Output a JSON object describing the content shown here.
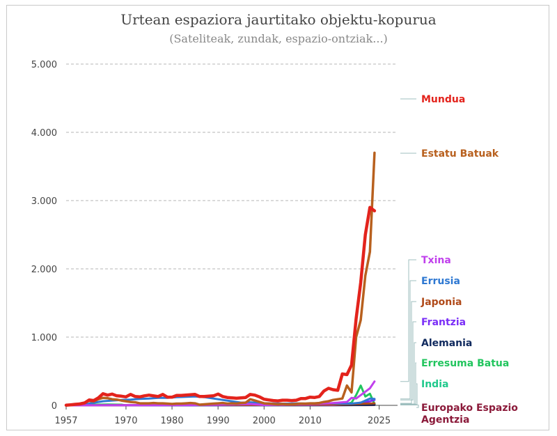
{
  "chart_data": {
    "type": "line",
    "title": "Urtean espaziora jaurtitako objektu-kopurua",
    "subtitle": "(Sateliteak, zundak, espazio-ontziak...)",
    "xlabel": "",
    "ylabel": "",
    "xlim": [
      1957,
      2029
    ],
    "ylim": [
      0,
      5000
    ],
    "x_ticks": [
      1957,
      1970,
      1980,
      1990,
      2000,
      2010,
      2025
    ],
    "y_ticks": [
      {
        "value": 0,
        "label": "0"
      },
      {
        "value": 1000,
        "label": "1.000"
      },
      {
        "value": 2000,
        "label": "2.000"
      },
      {
        "value": 3000,
        "label": "3.000"
      },
      {
        "value": 4000,
        "label": "4.000"
      },
      {
        "value": 5000,
        "label": "5.000"
      }
    ],
    "grid": true,
    "legend": "right, end-of-line labels",
    "series": [
      {
        "name": "Europako Espazio Agentzia",
        "color": "#8b1a3a",
        "x": [
          1975,
          1990,
          2010,
          2022,
          2024
        ],
        "y": [
          0,
          2,
          3,
          4,
          5
        ]
      },
      {
        "name": "India",
        "color": "#1fc98c",
        "x": [
          1975,
          1990,
          2010,
          2015,
          2020,
          2022,
          2024
        ],
        "y": [
          0,
          2,
          3,
          5,
          8,
          10,
          12
        ]
      },
      {
        "name": "Erresuma Batua",
        "color": "#22c55e",
        "x": [
          1957,
          1961,
          1962,
          1963,
          1966,
          1969,
          1970,
          1990,
          2015,
          2017,
          2018,
          2019,
          2020,
          2021,
          2022,
          2023,
          2024
        ],
        "y": [
          0,
          0,
          5,
          10,
          12,
          10,
          0,
          2,
          5,
          10,
          20,
          40,
          150,
          290,
          130,
          170,
          20
        ]
      },
      {
        "name": "Alemania",
        "color": "#102a5e",
        "x": [
          1957,
          1990,
          2015,
          2020,
          2023,
          2024
        ],
        "y": [
          0,
          2,
          3,
          5,
          8,
          10
        ]
      },
      {
        "name": "Frantzia",
        "color": "#7b2ff7",
        "x": [
          1957,
          1990,
          2015,
          2020,
          2023,
          2024
        ],
        "y": [
          0,
          3,
          5,
          30,
          60,
          80
        ]
      },
      {
        "name": "Japonia",
        "color": "#b04a1a",
        "x": [
          1957,
          1970,
          1980,
          1990,
          2000,
          2010,
          2015,
          2020,
          2024
        ],
        "y": [
          0,
          3,
          6,
          8,
          5,
          10,
          10,
          20,
          30
        ]
      },
      {
        "name": "Errusia",
        "color": "#2e78d2",
        "x": [
          1957,
          1961,
          1963,
          1965,
          1967,
          1969,
          1971,
          1973,
          1975,
          1977,
          1979,
          1981,
          1983,
          1985,
          1987,
          1989,
          1991,
          1993,
          1995,
          1997,
          1999,
          2001,
          2003,
          2005,
          2007,
          2009,
          2011,
          2013,
          2015,
          2017,
          2019,
          2021,
          2023,
          2024
        ],
        "y": [
          2,
          10,
          40,
          60,
          70,
          80,
          85,
          95,
          100,
          110,
          110,
          120,
          125,
          130,
          120,
          100,
          80,
          60,
          40,
          45,
          35,
          30,
          25,
          25,
          30,
          25,
          30,
          35,
          30,
          25,
          25,
          40,
          100,
          95
        ]
      },
      {
        "name": "Txina",
        "color": "#c040ec",
        "x": [
          1957,
          1970,
          1985,
          1997,
          2000,
          2010,
          2014,
          2016,
          2018,
          2019,
          2020,
          2021,
          2022,
          2023,
          2024
        ],
        "y": [
          0,
          2,
          5,
          20,
          5,
          20,
          30,
          40,
          50,
          110,
          100,
          150,
          200,
          250,
          350
        ]
      },
      {
        "name": "Estatu Batuak",
        "color": "#b8601e",
        "x": [
          1957,
          1958,
          1959,
          1960,
          1961,
          1962,
          1963,
          1964,
          1965,
          1966,
          1967,
          1968,
          1969,
          1970,
          1971,
          1972,
          1973,
          1974,
          1975,
          1976,
          1977,
          1978,
          1979,
          1980,
          1981,
          1982,
          1983,
          1984,
          1985,
          1986,
          1987,
          1988,
          1989,
          1990,
          1991,
          1992,
          1993,
          1994,
          1995,
          1996,
          1997,
          1998,
          1999,
          2000,
          2001,
          2002,
          2003,
          2004,
          2005,
          2006,
          2007,
          2008,
          2009,
          2010,
          2011,
          2012,
          2013,
          2014,
          2015,
          2016,
          2017,
          2018,
          2019,
          2020,
          2021,
          2022,
          2023,
          2024
        ],
        "y": [
          0,
          5,
          12,
          25,
          40,
          65,
          60,
          90,
          110,
          105,
          90,
          85,
          70,
          60,
          50,
          45,
          30,
          30,
          30,
          35,
          30,
          30,
          25,
          20,
          25,
          25,
          30,
          35,
          30,
          10,
          15,
          20,
          25,
          30,
          35,
          25,
          30,
          25,
          35,
          40,
          90,
          70,
          50,
          30,
          25,
          20,
          15,
          20,
          15,
          15,
          20,
          25,
          25,
          30,
          30,
          35,
          50,
          60,
          80,
          90,
          100,
          290,
          190,
          1000,
          1250,
          1900,
          2250,
          3700
        ]
      },
      {
        "name": "Mundua",
        "color": "#e3231c",
        "x": [
          1957,
          1958,
          1959,
          1960,
          1961,
          1962,
          1963,
          1964,
          1965,
          1966,
          1967,
          1968,
          1969,
          1970,
          1971,
          1972,
          1973,
          1974,
          1975,
          1976,
          1977,
          1978,
          1979,
          1980,
          1981,
          1982,
          1983,
          1984,
          1985,
          1986,
          1987,
          1988,
          1989,
          1990,
          1991,
          1992,
          1993,
          1994,
          1995,
          1996,
          1997,
          1998,
          1999,
          2000,
          2001,
          2002,
          2003,
          2004,
          2005,
          2006,
          2007,
          2008,
          2009,
          2010,
          2011,
          2012,
          2013,
          2014,
          2015,
          2016,
          2017,
          2018,
          2019,
          2020,
          2021,
          2022,
          2023,
          2024
        ],
        "y": [
          2,
          8,
          15,
          20,
          35,
          80,
          70,
          110,
          170,
          150,
          165,
          140,
          135,
          125,
          160,
          130,
          125,
          140,
          150,
          140,
          130,
          160,
          120,
          120,
          145,
          145,
          150,
          155,
          160,
          130,
          130,
          135,
          140,
          165,
          130,
          115,
          110,
          105,
          110,
          115,
          160,
          150,
          125,
          90,
          80,
          70,
          65,
          75,
          75,
          70,
          75,
          100,
          100,
          120,
          115,
          130,
          210,
          250,
          230,
          220,
          460,
          450,
          590,
          1270,
          1800,
          2500,
          2900,
          2850
        ]
      }
    ],
    "end_labels": [
      {
        "name": "Mundua",
        "color": "#e3231c"
      },
      {
        "name": "Estatu Batuak",
        "color": "#b8601e"
      },
      {
        "name": "Txina",
        "color": "#c040ec"
      },
      {
        "name": "Errusia",
        "color": "#2e78d2"
      },
      {
        "name": "Japonia",
        "color": "#b04a1a"
      },
      {
        "name": "Frantzia",
        "color": "#7b2ff7"
      },
      {
        "name": "Alemania",
        "color": "#102a5e"
      },
      {
        "name": "Erresuma Batua",
        "color": "#22c55e"
      },
      {
        "name": "India",
        "color": "#1fc98c"
      },
      {
        "name": "Europako Espazio Agentzia",
        "color": "#8b1a3a"
      }
    ]
  }
}
